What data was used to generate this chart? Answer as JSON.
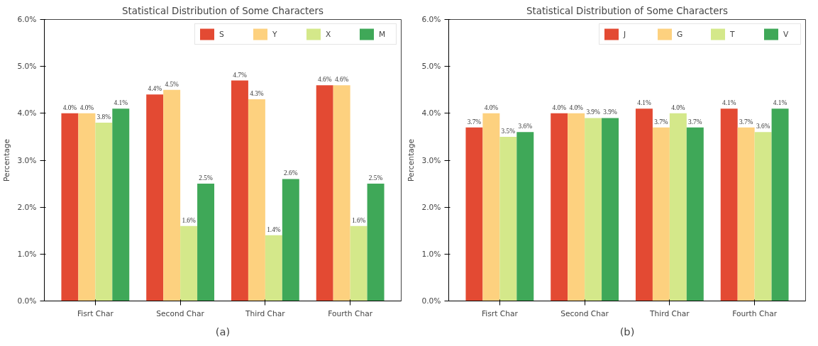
{
  "chart_data": [
    {
      "type": "bar",
      "title": "Statistical Distribution of Some Characters",
      "ylabel": "Percentage",
      "categories": [
        "Fisrt Char",
        "Second Char",
        "Third Char",
        "Fourth Char"
      ],
      "series": [
        {
          "name": "S",
          "color": "#e34a33",
          "values": [
            4.0,
            4.4,
            4.7,
            4.6
          ],
          "value_labels": [
            "4.0%",
            "4.4%",
            "4.7%",
            "4.6%"
          ]
        },
        {
          "name": "Y",
          "color": "#fdd17f",
          "values": [
            4.0,
            4.5,
            4.3,
            4.6
          ],
          "value_labels": [
            "4.0%",
            "4.5%",
            "4.3%",
            "4.6%"
          ]
        },
        {
          "name": "X",
          "color": "#d4e88a",
          "values": [
            3.8,
            1.6,
            1.4,
            1.6
          ],
          "value_labels": [
            "3.8%",
            "1.6%",
            "1.4%",
            "1.6%"
          ]
        },
        {
          "name": "M",
          "color": "#3fa858",
          "values": [
            4.1,
            2.5,
            2.6,
            2.5
          ],
          "value_labels": [
            "4.1%",
            "2.5%",
            "2.6%",
            "2.5%"
          ]
        }
      ],
      "ylim": [
        0,
        6
      ],
      "yticks": [
        {
          "value": 0,
          "label": "0.0%"
        },
        {
          "value": 1,
          "label": "1.0%"
        },
        {
          "value": 2,
          "label": "2.0%"
        },
        {
          "value": 3,
          "label": "3.0%"
        },
        {
          "value": 4,
          "label": "4.0%"
        },
        {
          "value": 5,
          "label": "5.0%"
        },
        {
          "value": 6,
          "label": "6.0%"
        }
      ],
      "legend": "top right",
      "grid": false,
      "annotations": [
        "(a)"
      ]
    },
    {
      "type": "bar",
      "title": "Statistical Distribution of Some Characters",
      "ylabel": "Percentage",
      "categories": [
        "Fisrt Char",
        "Second Char",
        "Third Char",
        "Fourth Char"
      ],
      "series": [
        {
          "name": "J",
          "color": "#e34a33",
          "values": [
            3.7,
            4.0,
            4.1,
            4.1
          ],
          "value_labels": [
            "3.7%",
            "4.0%",
            "4.1%",
            "4.1%"
          ]
        },
        {
          "name": "G",
          "color": "#fdd17f",
          "values": [
            4.0,
            4.0,
            3.7,
            3.7
          ],
          "value_labels": [
            "4.0%",
            "4.0%",
            "3.7%",
            "3.7%"
          ]
        },
        {
          "name": "T",
          "color": "#d4e88a",
          "values": [
            3.5,
            3.9,
            4.0,
            3.6
          ],
          "value_labels": [
            "3.5%",
            "3.9%",
            "4.0%",
            "3.6%"
          ]
        },
        {
          "name": "V",
          "color": "#3fa858",
          "values": [
            3.6,
            3.9,
            3.7,
            4.1
          ],
          "value_labels": [
            "3.6%",
            "3.9%",
            "3.7%",
            "4.1%"
          ]
        }
      ],
      "ylim": [
        0,
        6
      ],
      "yticks": [
        {
          "value": 0,
          "label": "0.0%"
        },
        {
          "value": 1,
          "label": "1.0%"
        },
        {
          "value": 2,
          "label": "2.0%"
        },
        {
          "value": 3,
          "label": "3.0%"
        },
        {
          "value": 4,
          "label": "4.0%"
        },
        {
          "value": 5,
          "label": "5.0%"
        },
        {
          "value": 6,
          "label": "6.0%"
        }
      ],
      "legend": "top right",
      "grid": false,
      "annotations": [
        "(b)"
      ]
    }
  ]
}
